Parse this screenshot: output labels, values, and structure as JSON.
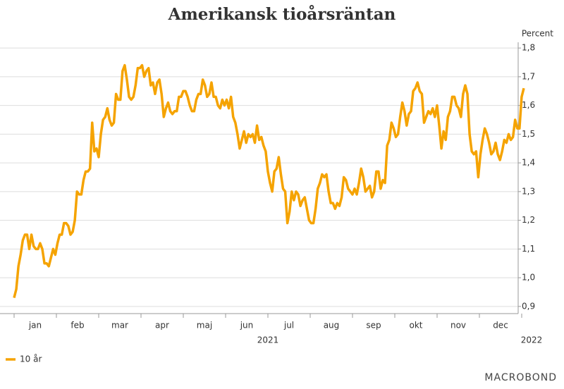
{
  "chart_data": {
    "type": "line",
    "title": "Amerikansk tioårsräntan",
    "y_label": "Percent",
    "months": [
      "jan",
      "feb",
      "mar",
      "apr",
      "maj",
      "jun",
      "jul",
      "aug",
      "sep",
      "okt",
      "nov",
      "dec"
    ],
    "years": [
      "2021",
      "2022"
    ],
    "ylim": [
      0.875,
      1.82
    ],
    "yticks": [
      {
        "value": 0.9,
        "label": "0,9"
      },
      {
        "value": 1.0,
        "label": "1,0"
      },
      {
        "value": 1.1,
        "label": "1,1"
      },
      {
        "value": 1.2,
        "label": "1,2"
      },
      {
        "value": 1.3,
        "label": "1,3"
      },
      {
        "value": 1.4,
        "label": "1,4"
      },
      {
        "value": 1.5,
        "label": "1,5"
      },
      {
        "value": 1.6,
        "label": "1,6"
      },
      {
        "value": 1.7,
        "label": "1,7"
      },
      {
        "value": 1.8,
        "label": "1,8"
      }
    ],
    "grid": true,
    "legend": "bottom-left",
    "source": "MACROBOND",
    "series": [
      {
        "name": "10 år",
        "color": "#f5a300",
        "values": [
          0.93,
          0.96,
          1.04,
          1.08,
          1.13,
          1.15,
          1.15,
          1.1,
          1.15,
          1.11,
          1.1,
          1.1,
          1.12,
          1.1,
          1.05,
          1.05,
          1.04,
          1.07,
          1.1,
          1.08,
          1.12,
          1.15,
          1.15,
          1.19,
          1.19,
          1.18,
          1.15,
          1.16,
          1.2,
          1.3,
          1.29,
          1.29,
          1.34,
          1.37,
          1.37,
          1.38,
          1.54,
          1.44,
          1.45,
          1.42,
          1.5,
          1.55,
          1.56,
          1.59,
          1.55,
          1.53,
          1.54,
          1.64,
          1.62,
          1.62,
          1.72,
          1.74,
          1.69,
          1.63,
          1.62,
          1.63,
          1.67,
          1.73,
          1.73,
          1.74,
          1.7,
          1.72,
          1.73,
          1.67,
          1.68,
          1.64,
          1.68,
          1.69,
          1.64,
          1.56,
          1.59,
          1.61,
          1.58,
          1.57,
          1.58,
          1.58,
          1.63,
          1.63,
          1.65,
          1.65,
          1.63,
          1.6,
          1.58,
          1.58,
          1.62,
          1.64,
          1.64,
          1.69,
          1.67,
          1.63,
          1.64,
          1.68,
          1.63,
          1.63,
          1.6,
          1.59,
          1.62,
          1.6,
          1.62,
          1.59,
          1.63,
          1.56,
          1.54,
          1.5,
          1.45,
          1.48,
          1.51,
          1.47,
          1.5,
          1.49,
          1.5,
          1.47,
          1.53,
          1.48,
          1.49,
          1.46,
          1.44,
          1.37,
          1.33,
          1.3,
          1.37,
          1.38,
          1.42,
          1.36,
          1.31,
          1.3,
          1.19,
          1.23,
          1.3,
          1.27,
          1.3,
          1.29,
          1.25,
          1.27,
          1.28,
          1.24,
          1.2,
          1.19,
          1.19,
          1.24,
          1.31,
          1.33,
          1.36,
          1.35,
          1.36,
          1.3,
          1.26,
          1.26,
          1.24,
          1.26,
          1.25,
          1.28,
          1.35,
          1.34,
          1.31,
          1.3,
          1.29,
          1.31,
          1.29,
          1.33,
          1.38,
          1.35,
          1.3,
          1.31,
          1.32,
          1.28,
          1.3,
          1.37,
          1.37,
          1.31,
          1.34,
          1.33,
          1.46,
          1.48,
          1.54,
          1.52,
          1.49,
          1.5,
          1.56,
          1.61,
          1.58,
          1.53,
          1.57,
          1.58,
          1.65,
          1.66,
          1.68,
          1.65,
          1.64,
          1.54,
          1.56,
          1.58,
          1.57,
          1.59,
          1.56,
          1.6,
          1.53,
          1.45,
          1.51,
          1.48,
          1.56,
          1.58,
          1.63,
          1.63,
          1.6,
          1.59,
          1.56,
          1.64,
          1.67,
          1.64,
          1.5,
          1.44,
          1.43,
          1.44,
          1.35,
          1.43,
          1.48,
          1.52,
          1.5,
          1.47,
          1.43,
          1.44,
          1.47,
          1.43,
          1.41,
          1.44,
          1.48,
          1.47,
          1.5,
          1.48,
          1.49,
          1.55,
          1.52,
          1.52,
          1.63,
          1.66
        ]
      }
    ]
  }
}
